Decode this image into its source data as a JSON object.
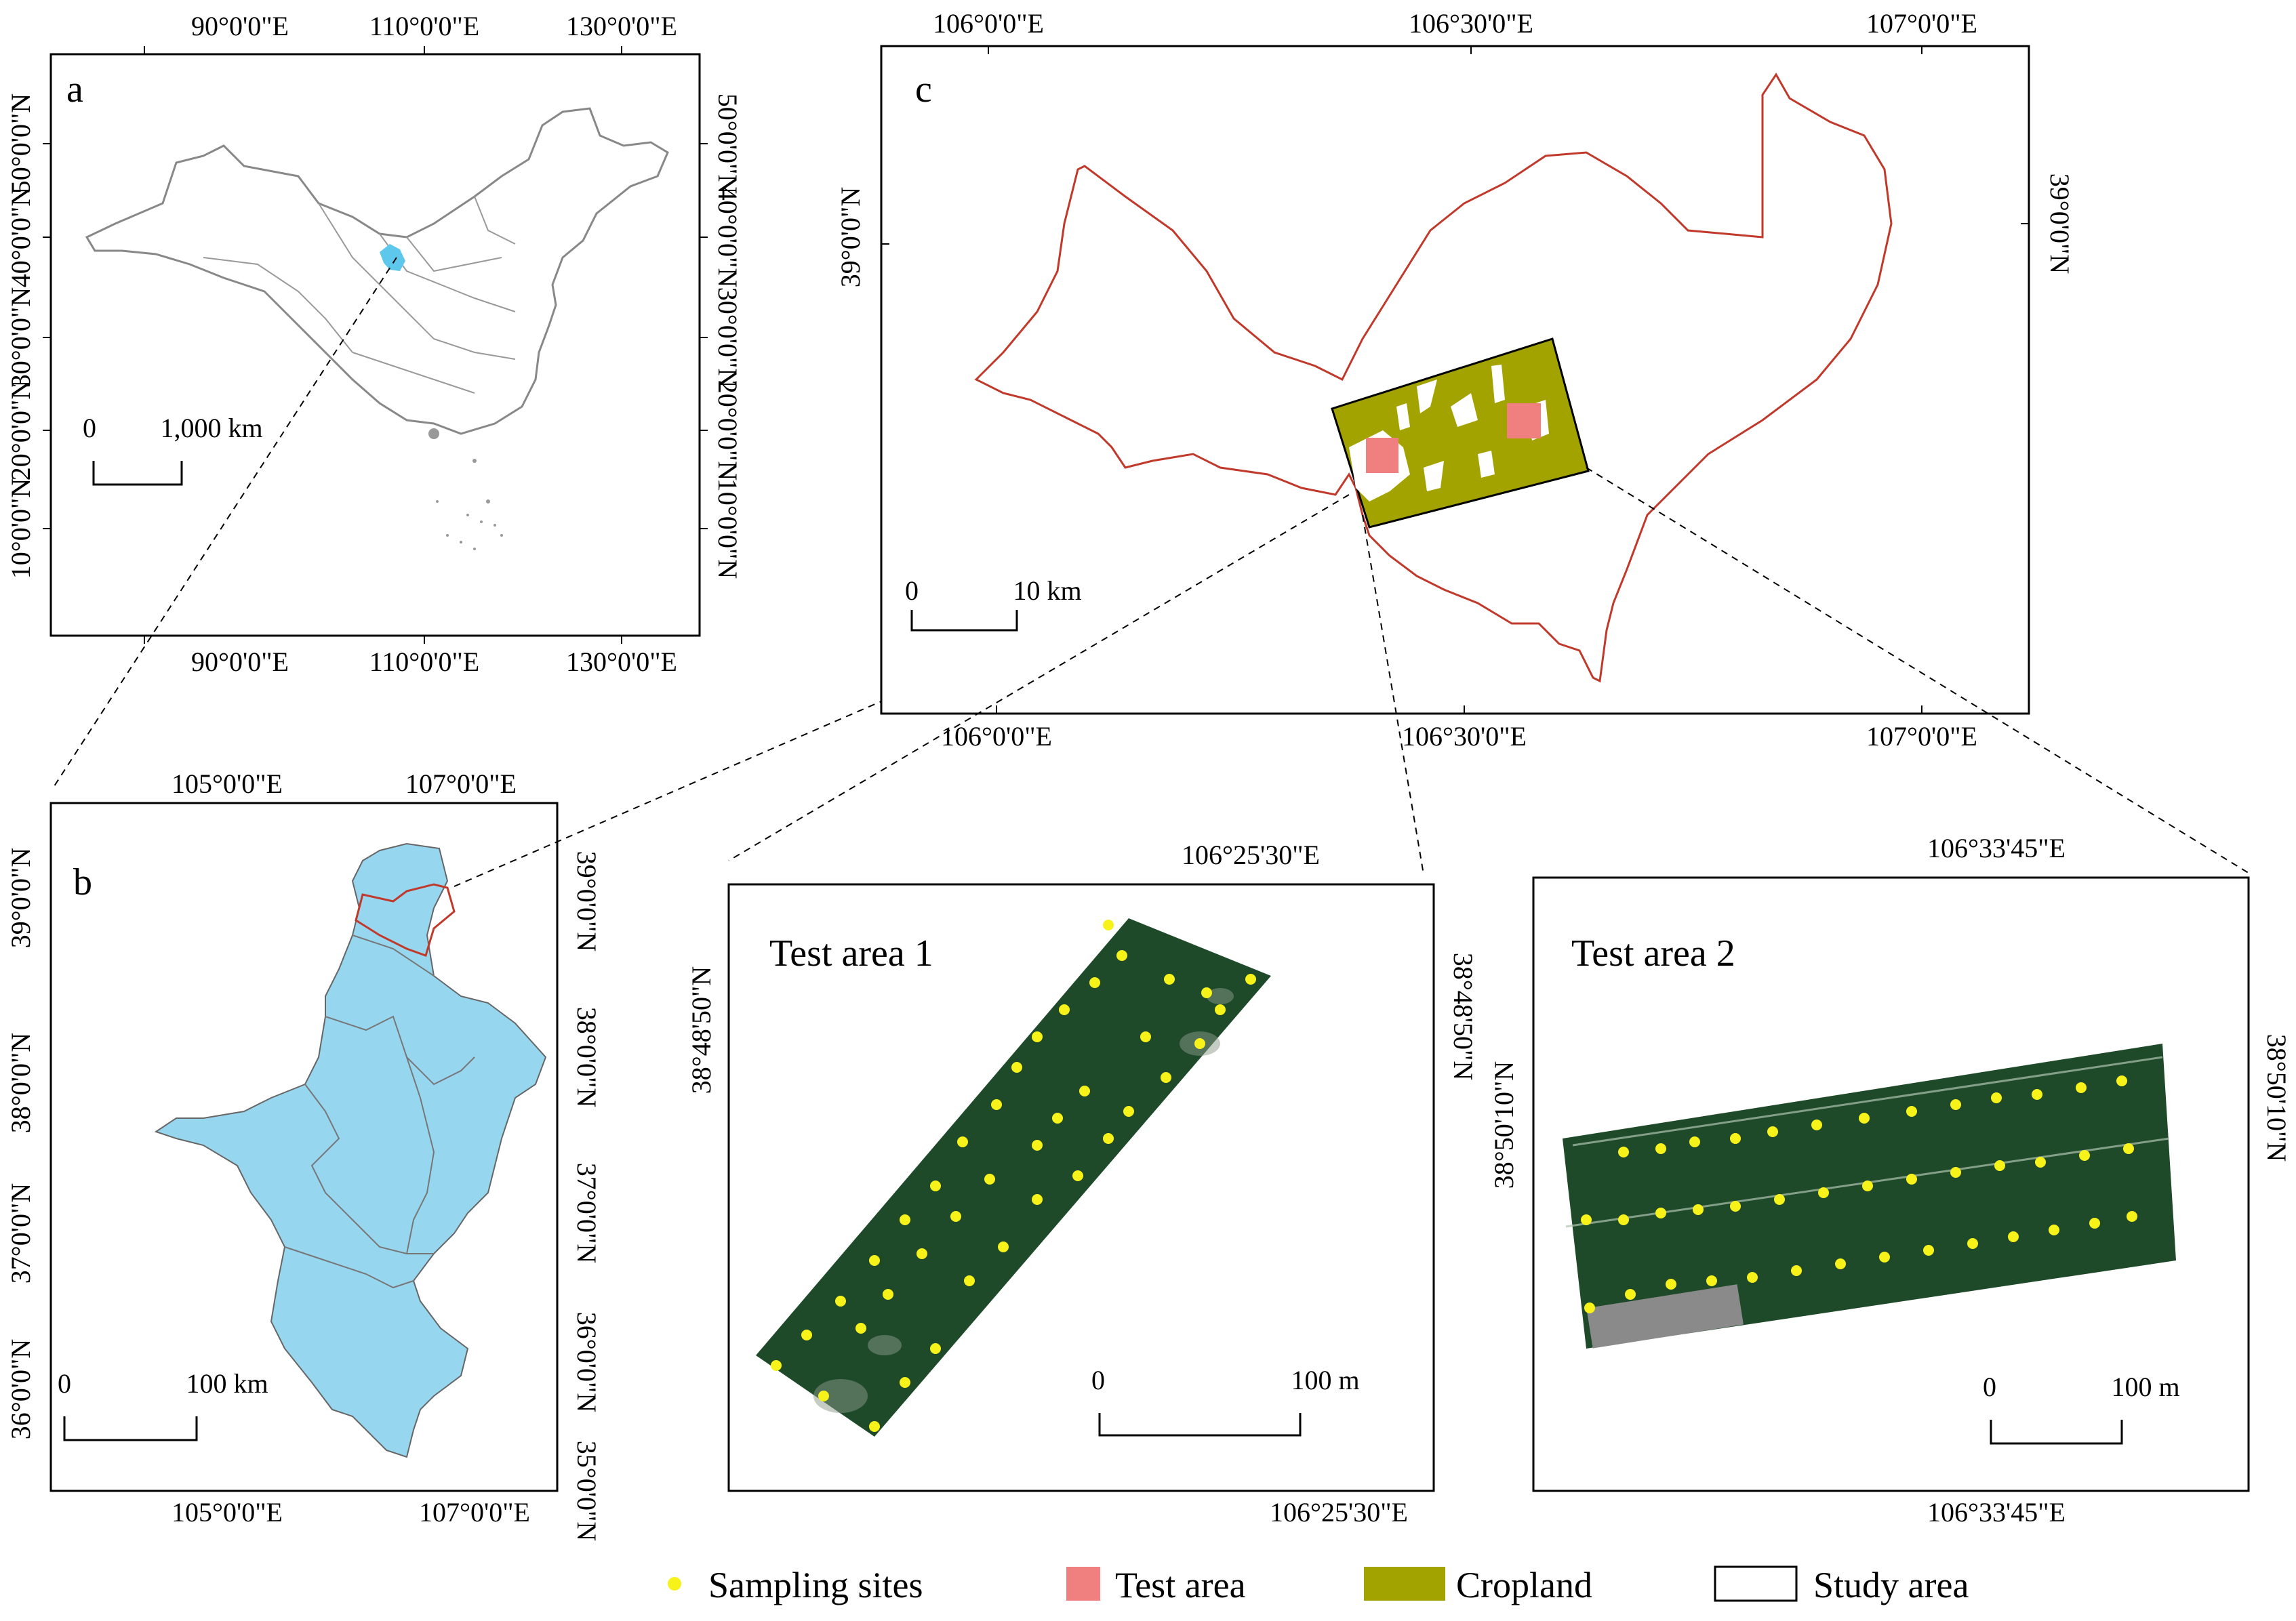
{
  "panel_a": {
    "label": "a",
    "top_lon": [
      "90°0'0\"E",
      "110°0'0\"E",
      "130°0'0\"E"
    ],
    "bottom_lon": [
      "90°0'0\"E",
      "110°0'0\"E",
      "130°0'0\"E"
    ],
    "left_lat": [
      "50°0'0\"N",
      "40°0'0\"N",
      "30°0'0\"N",
      "20°0'0\"N",
      "10°0'0\"N"
    ],
    "right_lat": [
      "50°0'0\"N",
      "40°0'0\"N",
      "30°0'0\"N",
      "20°0'0\"N",
      "10°0'0\"N"
    ],
    "scale_zero": "0",
    "scale_label": "1,000 km"
  },
  "panel_b": {
    "label": "b",
    "top_lon": [
      "105°0'0\"E",
      "107°0'0\"E"
    ],
    "bottom_lon": [
      "105°0'0\"E",
      "107°0'0\"E"
    ],
    "left_lat": [
      "39°0'0\"N",
      "38°0'0\"N",
      "37°0'0\"N",
      "36°0'0\"N"
    ],
    "right_lat": [
      "39°0'0\"N",
      "38°0'0\"N",
      "37°0'0\"N",
      "36°0'0\"N",
      "35°0'0\"N"
    ],
    "scale_zero": "0",
    "scale_label": "100 km"
  },
  "panel_c": {
    "label": "c",
    "top_lon": [
      "106°0'0\"E",
      "106°30'0\"E",
      "107°0'0\"E"
    ],
    "bottom_lon": [
      "106°0'0\"E",
      "106°30'0\"E",
      "107°0'0\"E"
    ],
    "left_lat": [
      "39°0'0\"N"
    ],
    "right_lat": [
      "39°0'0\"N"
    ],
    "scale_zero": "0",
    "scale_label": "10 km"
  },
  "test1": {
    "title": "Test area 1",
    "top_lon": "106°25'30\"E",
    "bottom_lon": "106°25'30\"E",
    "left_lat": "38°48'50\"N",
    "right_lat": "38°48'50\"N",
    "scale_zero": "0",
    "scale_label": "100 m"
  },
  "test2": {
    "title": "Test area 2",
    "top_lon": "106°33'45\"E",
    "bottom_lon": "106°33'45\"E",
    "left_lat": "38°50'10\"N",
    "right_lat": "38°50'10\"N",
    "scale_zero": "0",
    "scale_label": "100 m"
  },
  "legend": {
    "sampling_sites": "Sampling sites",
    "test_area": "Test area",
    "cropland": "Cropland",
    "study_area": "Study area"
  },
  "colors": {
    "province": "#8fd3ee",
    "study_area_outline": "#c0392b",
    "test_area": "#f08080",
    "cropland": "#a3a300",
    "sampling_site": "#f7f21a",
    "imagery": "#1f4a2a"
  }
}
